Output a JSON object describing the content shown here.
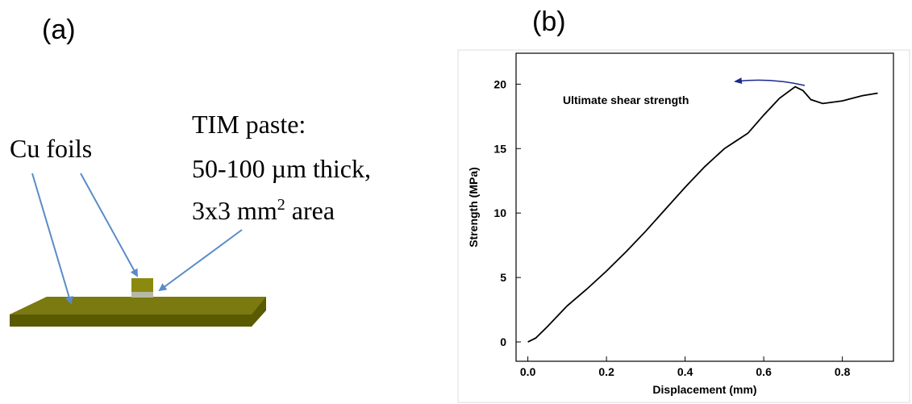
{
  "panel_a": {
    "label": "(a)",
    "cu_label": "Cu foils",
    "tim_line1": "TIM paste:",
    "tim_line2": "50-100 µm thick,",
    "tim_line3_start": "3x3 mm",
    "tim_line3_sup": "2",
    "tim_line3_end": " area"
  },
  "chart_data": {
    "type": "line",
    "panel_label": "(b)",
    "x_label": "Displacement (mm)",
    "y_label": "Strength (MPa)",
    "annotation": "Ultimate shear strength",
    "x": [
      0,
      0.02,
      0.05,
      0.1,
      0.15,
      0.2,
      0.25,
      0.3,
      0.35,
      0.4,
      0.45,
      0.5,
      0.53,
      0.56,
      0.6,
      0.64,
      0.68,
      0.7,
      0.72,
      0.75,
      0.8,
      0.85,
      0.89
    ],
    "values": [
      0,
      0.3,
      1.2,
      2.8,
      4.1,
      5.5,
      7.0,
      8.6,
      10.3,
      12.0,
      13.6,
      15.0,
      15.6,
      16.2,
      17.6,
      18.9,
      19.8,
      19.5,
      18.8,
      18.5,
      18.7,
      19.1,
      19.3
    ],
    "color": "#000000",
    "xlim": [
      -0.03,
      0.93
    ],
    "ylim": [
      -1.5,
      22.4
    ],
    "xticks": [
      {
        "value": 0,
        "label": "0.0"
      },
      0.2,
      0.4,
      0.6,
      0.8
    ],
    "yticks": [
      0,
      5,
      10,
      15,
      20
    ]
  }
}
